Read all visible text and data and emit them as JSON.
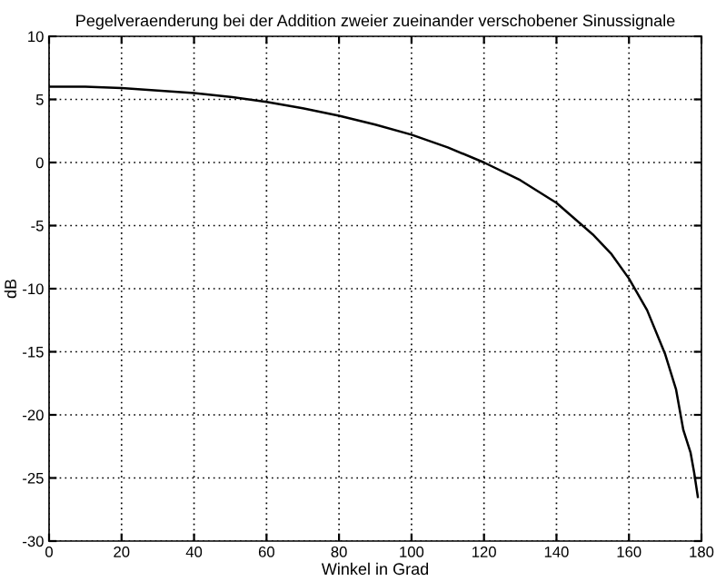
{
  "chart_data": {
    "type": "line",
    "title": "Pegelveraenderung bei der Addition zweier zueinander verschobener Sinussignale",
    "xlabel": "Winkel in Grad",
    "ylabel": "dB",
    "series": [
      {
        "color": "#000000",
        "x": [
          0,
          10,
          20,
          30,
          40,
          50,
          60,
          70,
          80,
          90,
          100,
          110,
          120,
          130,
          140,
          150,
          155,
          160,
          165,
          170,
          173,
          175,
          177,
          178,
          179
        ],
        "values": [
          6.0,
          6.0,
          5.9,
          5.7,
          5.5,
          5.2,
          4.8,
          4.3,
          3.7,
          3.0,
          2.2,
          1.2,
          0.0,
          -1.4,
          -3.2,
          -5.7,
          -7.2,
          -9.2,
          -11.7,
          -15.2,
          -18.0,
          -21.2,
          -23.0,
          -24.6,
          -26.5
        ]
      }
    ],
    "xlim": [
      0,
      180
    ],
    "ylim": [
      -30,
      10
    ],
    "xticks": [
      0,
      20,
      40,
      60,
      80,
      100,
      120,
      140,
      160,
      180
    ],
    "yticks": [
      -30,
      -25,
      -20,
      -15,
      -10,
      -5,
      0,
      5,
      10
    ],
    "grid": true,
    "line_style": "solid",
    "marker": "none"
  }
}
